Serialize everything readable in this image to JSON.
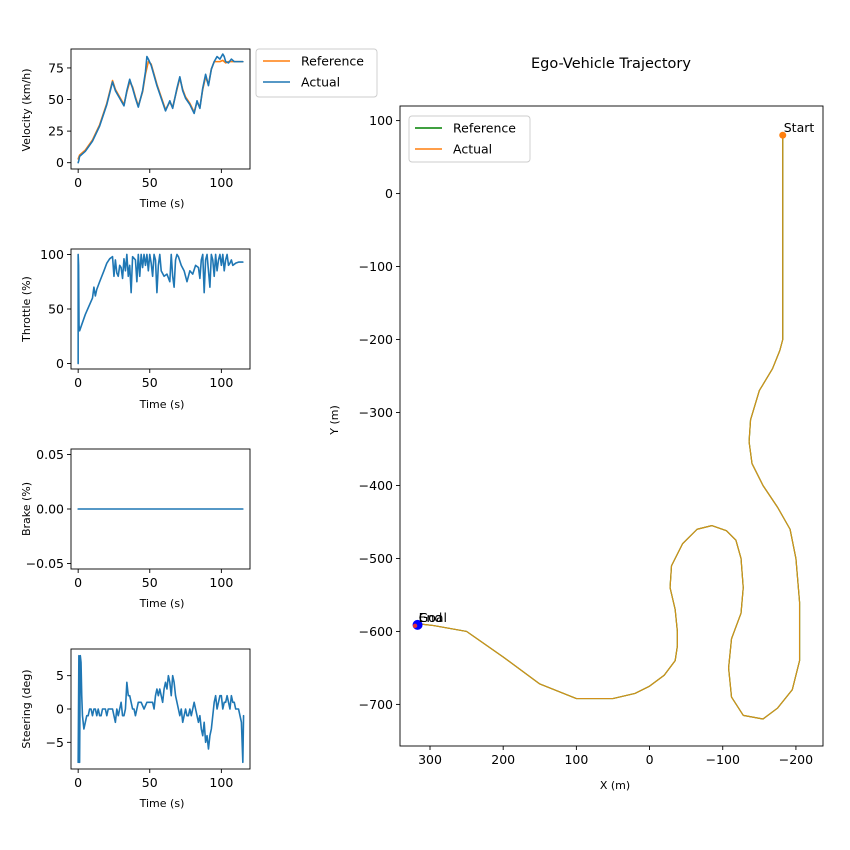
{
  "figure_title": "Ego-Vehicle Trajectory",
  "colors": {
    "reference_green": "#008000",
    "actual_orange": "#ff7f0e",
    "signal_blue": "#1f77b4",
    "trajectory_line": "#d2901a",
    "end_marker": "#0000ff",
    "start_marker": "#ff7f0e"
  },
  "chart_data": [
    {
      "id": "velocity",
      "type": "line",
      "xlabel": "Time (s)",
      "ylabel": "Velocity (km/h)",
      "xlim": [
        -5,
        120
      ],
      "ylim": [
        -5,
        90
      ],
      "xticks": [
        0,
        50,
        100
      ],
      "xtick_labels": [
        "0",
        "50",
        "100"
      ],
      "yticks": [
        0,
        25,
        50,
        75
      ],
      "ytick_labels": [
        "0",
        "25",
        "50",
        "75"
      ],
      "legend": {
        "placement": "outside-top-right",
        "entries": [
          "Reference",
          "Actual"
        ]
      },
      "series": [
        {
          "name": "Reference",
          "color": "#ff7f0e",
          "x": [
            0,
            1,
            5,
            10,
            15,
            20,
            24,
            26,
            29,
            32,
            34,
            36,
            38,
            40,
            42,
            45,
            47,
            49,
            51,
            53,
            55,
            58,
            61,
            64,
            66,
            69,
            71,
            73,
            75,
            78,
            81,
            83,
            85,
            87,
            89,
            91,
            93,
            95,
            97,
            99,
            101,
            103,
            105,
            107,
            110,
            115
          ],
          "y": [
            3,
            6,
            10,
            18,
            30,
            47,
            65,
            58,
            52,
            46,
            56,
            64,
            60,
            52,
            45,
            56,
            70,
            80,
            78,
            70,
            62,
            52,
            42,
            48,
            44,
            58,
            67,
            58,
            52,
            47,
            40,
            48,
            44,
            58,
            68,
            62,
            74,
            80,
            80,
            80,
            81,
            79,
            80,
            80,
            80,
            80
          ]
        },
        {
          "name": "Actual",
          "color": "#1f77b4",
          "x": [
            0,
            0.5,
            1,
            5,
            10,
            15,
            20,
            24,
            26,
            29,
            32,
            34,
            36,
            38,
            40,
            42,
            45,
            47,
            48,
            49,
            51,
            53,
            55,
            58,
            61,
            64,
            66,
            69,
            71,
            73,
            75,
            78,
            81,
            83,
            85,
            87,
            89,
            91,
            93,
            95,
            97,
            99,
            101,
            102,
            103,
            105,
            107,
            109,
            110,
            115
          ],
          "y": [
            0,
            2,
            5,
            9,
            17,
            29,
            46,
            64,
            57,
            51,
            45,
            57,
            66,
            59,
            51,
            44,
            57,
            72,
            84,
            82,
            77,
            69,
            61,
            51,
            41,
            49,
            43,
            59,
            68,
            57,
            51,
            46,
            39,
            49,
            43,
            59,
            70,
            61,
            74,
            80,
            84,
            82,
            86,
            84,
            80,
            79,
            82,
            80,
            80,
            80
          ]
        }
      ]
    },
    {
      "id": "throttle",
      "type": "line",
      "xlabel": "Time (s)",
      "ylabel": "Throttle (%)",
      "xlim": [
        -5,
        120
      ],
      "ylim": [
        -5,
        105
      ],
      "xticks": [
        0,
        50,
        100
      ],
      "xtick_labels": [
        "0",
        "50",
        "100"
      ],
      "yticks": [
        0,
        50,
        100
      ],
      "ytick_labels": [
        "0",
        "50",
        "100"
      ],
      "series": [
        {
          "name": "Throttle",
          "color": "#1f77b4",
          "x": [
            0,
            0,
            0.3,
            0.6,
            1,
            5,
            10,
            11,
            12,
            13,
            15,
            18,
            20,
            22,
            24,
            25,
            26,
            27,
            28,
            29,
            30,
            31,
            32,
            33,
            34,
            35,
            36,
            37,
            38,
            40,
            41,
            42,
            43,
            44,
            45,
            46,
            47,
            48,
            49,
            50,
            51,
            52,
            53,
            54,
            55,
            56,
            57,
            58,
            60,
            62,
            64,
            65,
            66,
            67,
            68,
            69,
            70,
            72,
            74,
            76,
            78,
            80,
            82,
            84,
            85,
            86,
            87,
            88,
            89,
            90,
            91,
            92,
            93,
            94,
            95,
            96,
            97,
            98,
            99,
            100,
            101,
            102,
            103,
            104,
            105,
            106,
            107,
            108,
            110,
            112,
            115
          ],
          "y": [
            0,
            100,
            90,
            35,
            30,
            45,
            60,
            70,
            62,
            68,
            75,
            85,
            92,
            96,
            98,
            80,
            95,
            83,
            80,
            90,
            88,
            78,
            96,
            85,
            100,
            80,
            90,
            65,
            98,
            95,
            75,
            100,
            80,
            100,
            88,
            100,
            90,
            100,
            85,
            100,
            92,
            80,
            100,
            95,
            65,
            90,
            100,
            85,
            80,
            82,
            75,
            100,
            80,
            70,
            95,
            100,
            98,
            90,
            85,
            75,
            85,
            82,
            90,
            88,
            78,
            95,
            100,
            65,
            95,
            100,
            85,
            70,
            100,
            95,
            80,
            100,
            85,
            95,
            100,
            90,
            100,
            85,
            95,
            100,
            90,
            92,
            95,
            90,
            92,
            93,
            93
          ]
        }
      ]
    },
    {
      "id": "brake",
      "type": "line",
      "xlabel": "Time (s)",
      "ylabel": "Brake (%)",
      "xlim": [
        -5,
        120
      ],
      "ylim": [
        -0.055,
        0.055
      ],
      "xticks": [
        0,
        50,
        100
      ],
      "xtick_labels": [
        "0",
        "50",
        "100"
      ],
      "yticks": [
        -0.05,
        0,
        0.05
      ],
      "ytick_labels": [
        "−0.05",
        "0.00",
        "0.05"
      ],
      "series": [
        {
          "name": "Brake",
          "color": "#1f77b4",
          "x": [
            0,
            115
          ],
          "y": [
            0,
            0
          ]
        }
      ]
    },
    {
      "id": "steering",
      "type": "line",
      "xlabel": "Time (s)",
      "ylabel": "Steering (deg)",
      "xlim": [
        -5,
        120
      ],
      "ylim": [
        -9,
        9
      ],
      "xticks": [
        0,
        50,
        100
      ],
      "xtick_labels": [
        "0",
        "50",
        "100"
      ],
      "yticks": [
        -5,
        0,
        5
      ],
      "ytick_labels": [
        "−5",
        "0",
        "5"
      ],
      "series": [
        {
          "name": "Steering",
          "color": "#1f77b4",
          "x": [
            0,
            0.5,
            1,
            1.5,
            2,
            2.5,
            3,
            3.5,
            4,
            5,
            6,
            7,
            8,
            9,
            10,
            11,
            12,
            13,
            14,
            15,
            16,
            17,
            18,
            19,
            20,
            21,
            22,
            23,
            24,
            25,
            26,
            27,
            28,
            29,
            30,
            31,
            32,
            33,
            34,
            35,
            36,
            37,
            38,
            39,
            40,
            42,
            44,
            46,
            48,
            50,
            52,
            53,
            54,
            55,
            56,
            57,
            58,
            59,
            60,
            61,
            62,
            63,
            64,
            65,
            66,
            67,
            68,
            69,
            70,
            71,
            72,
            73,
            74,
            75,
            76,
            77,
            78,
            79,
            80,
            81,
            82,
            83,
            84,
            85,
            86,
            87,
            88,
            89,
            90,
            91,
            92,
            93,
            94,
            95,
            96,
            97,
            98,
            99,
            100,
            101,
            102,
            103,
            104,
            105,
            106,
            107,
            108,
            109,
            110,
            111,
            112,
            113,
            114,
            115,
            115.5
          ],
          "y": [
            -8,
            8,
            -8,
            8,
            7,
            2,
            -1,
            -2,
            -3,
            -2,
            -1,
            -1,
            0,
            0,
            -1,
            0,
            0,
            -1,
            0,
            -1,
            -1,
            0,
            0,
            0,
            -1,
            0,
            0,
            0,
            0,
            -1,
            -2,
            0,
            -1,
            0,
            1,
            -1,
            -1,
            0,
            4,
            2,
            2,
            1,
            0,
            0,
            -1,
            1,
            1,
            0,
            1,
            1,
            1,
            0,
            2,
            3,
            2,
            3,
            2,
            1,
            3,
            4,
            3,
            5,
            4,
            2,
            5,
            4,
            2,
            1,
            0,
            -1,
            0,
            -2,
            -1,
            0,
            -1,
            -1,
            0,
            -1,
            0,
            1,
            0,
            -1,
            -2,
            -1,
            -3,
            -4,
            -2,
            -5,
            -4,
            -6,
            -4,
            -3,
            -1,
            1,
            2,
            0,
            1,
            2,
            2,
            0,
            1,
            1,
            2,
            1,
            0,
            2,
            1,
            1,
            0,
            0,
            0,
            -1,
            -2,
            -8,
            -1
          ]
        }
      ]
    },
    {
      "id": "trajectory",
      "type": "line",
      "title": "Ego-Vehicle Trajectory",
      "xlabel": "X (m)",
      "ylabel": "Y (m)",
      "xlim": [
        341,
        -237
      ],
      "ylim": [
        -757,
        120
      ],
      "xticks": [
        300,
        200,
        100,
        0,
        -100,
        -200
      ],
      "xtick_labels": [
        "300",
        "200",
        "100",
        "0",
        "−100",
        "−200"
      ],
      "yticks": [
        100,
        0,
        -100,
        -200,
        -300,
        -400,
        -500,
        -600,
        -700
      ],
      "ytick_labels": [
        "100",
        "0",
        "−100",
        "−200",
        "−300",
        "−400",
        "−500",
        "−600",
        "−700"
      ],
      "legend": {
        "placement": "top-left",
        "entries": [
          "Reference",
          "Actual"
        ]
      },
      "annotations": [
        {
          "text": "Start",
          "x": -182,
          "y": 80
        },
        {
          "text": "End",
          "x": 317,
          "y": -591
        },
        {
          "text": "Goal",
          "x": 317,
          "y": -591
        }
      ],
      "series": [
        {
          "name": "Reference",
          "color": "#008000",
          "x": [
            -182,
            -182,
            -182,
            -182,
            -178,
            -168,
            -150,
            -138,
            -136,
            -140,
            -155,
            -175,
            -192,
            -200,
            -205,
            -205,
            -195,
            -175,
            -155,
            -128,
            -112,
            -108,
            -112,
            -125,
            -128,
            -125,
            -118,
            -105,
            -85,
            -65,
            -45,
            -30,
            -28,
            -35,
            -38,
            -38,
            -35,
            -20,
            0,
            20,
            50,
            100,
            150,
            200,
            250,
            295,
            312,
            316
          ],
          "y": [
            80,
            0,
            -100,
            -200,
            -215,
            -240,
            -270,
            -310,
            -340,
            -370,
            -400,
            -430,
            -460,
            -500,
            -560,
            -640,
            -680,
            -705,
            -720,
            -715,
            -690,
            -650,
            -610,
            -575,
            -540,
            -500,
            -475,
            -462,
            -455,
            -460,
            -480,
            -510,
            -540,
            -570,
            -600,
            -620,
            -640,
            -660,
            -675,
            -685,
            -692,
            -692,
            -672,
            -635,
            -600,
            -592,
            -590,
            -591
          ]
        },
        {
          "name": "Actual",
          "color": "#ff7f0e",
          "x": [
            -182,
            -182,
            -182,
            -182,
            -178,
            -168,
            -150,
            -138,
            -136,
            -140,
            -155,
            -175,
            -192,
            -200,
            -205,
            -205,
            -195,
            -175,
            -155,
            -128,
            -112,
            -108,
            -112,
            -125,
            -128,
            -125,
            -118,
            -105,
            -85,
            -65,
            -45,
            -30,
            -28,
            -35,
            -38,
            -38,
            -35,
            -20,
            0,
            20,
            50,
            100,
            150,
            200,
            250,
            295,
            312,
            316
          ],
          "y": [
            80,
            0,
            -100,
            -200,
            -215,
            -240,
            -270,
            -310,
            -340,
            -370,
            -400,
            -430,
            -460,
            -500,
            -560,
            -640,
            -680,
            -705,
            -720,
            -715,
            -690,
            -650,
            -610,
            -575,
            -540,
            -500,
            -475,
            -462,
            -455,
            -460,
            -480,
            -510,
            -540,
            -570,
            -600,
            -620,
            -640,
            -660,
            -675,
            -685,
            -692,
            -692,
            -672,
            -635,
            -600,
            -592,
            -590,
            -591
          ]
        }
      ]
    }
  ]
}
